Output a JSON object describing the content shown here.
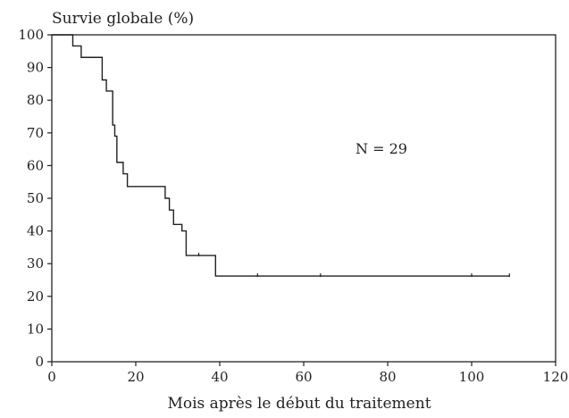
{
  "chart_data": {
    "type": "line",
    "subtype": "kaplan-meier-step",
    "title": "",
    "ylabel": "Survie globale (%)",
    "xlabel": "Mois après le début du traitement",
    "xlim": [
      0,
      120
    ],
    "ylim": [
      0,
      100
    ],
    "xticks": [
      0,
      20,
      40,
      60,
      80,
      100,
      120
    ],
    "yticks": [
      0,
      10,
      20,
      30,
      40,
      50,
      60,
      70,
      80,
      90,
      100
    ],
    "grid": false,
    "annotation": "N = 29",
    "series": [
      {
        "steps": [
          {
            "x": 0,
            "y": 100
          },
          {
            "x": 5,
            "y": 96.6
          },
          {
            "x": 7,
            "y": 93.1
          },
          {
            "x": 12,
            "y": 86.2
          },
          {
            "x": 13,
            "y": 82.8
          },
          {
            "x": 14.5,
            "y": 72.4
          },
          {
            "x": 15,
            "y": 69.0
          },
          {
            "x": 15.5,
            "y": 61.0
          },
          {
            "x": 17,
            "y": 57.5
          },
          {
            "x": 18,
            "y": 53.6
          },
          {
            "x": 27,
            "y": 50.0
          },
          {
            "x": 28,
            "y": 46.4
          },
          {
            "x": 29,
            "y": 42.0
          },
          {
            "x": 31,
            "y": 40.0
          },
          {
            "x": 32,
            "y": 32.5
          },
          {
            "x": 39,
            "y": 26.2
          }
        ],
        "end_x": 109,
        "censored_x": [
          35,
          49,
          64,
          100,
          109
        ]
      }
    ],
    "colors": {
      "line": "#222222",
      "axis": "#222222"
    }
  }
}
